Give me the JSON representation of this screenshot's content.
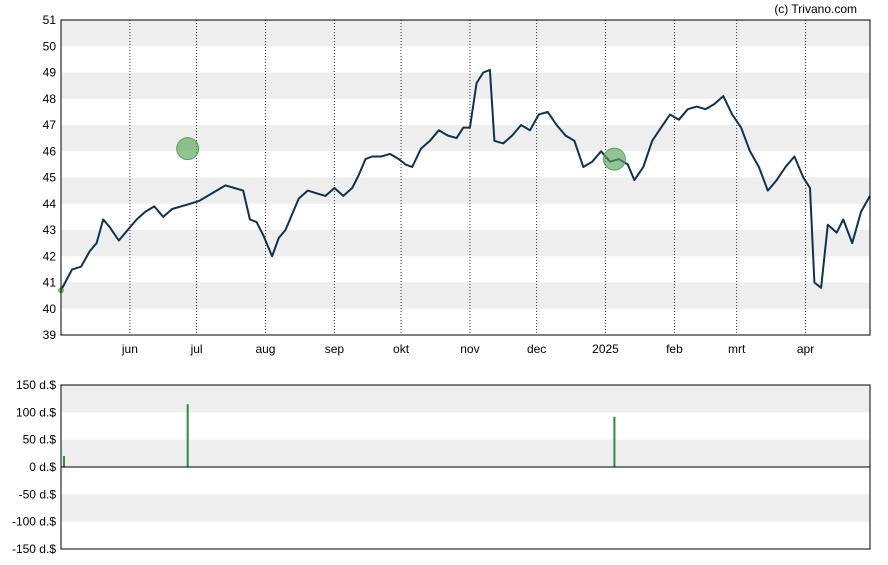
{
  "credit": "(c) Trivano.com",
  "colors": {
    "price_line": "#0d3350",
    "dividend_bar": "#2e8b3e",
    "dividend_marker": "#5aa55a",
    "band": "#eeeeee",
    "axis": "#000000"
  },
  "chart_data": [
    {
      "type": "line",
      "name": "price",
      "x_tick_labels": [
        "jun",
        "jul",
        "aug",
        "sep",
        "okt",
        "nov",
        "dec",
        "2025",
        "feb",
        "mrt",
        "apr"
      ],
      "y_tick_labels": [
        "39",
        "40",
        "41",
        "42",
        "43",
        "44",
        "45",
        "46",
        "47",
        "48",
        "49",
        "50",
        "51"
      ],
      "ylim": [
        39,
        51
      ],
      "grid": "alternating horizontal bands, dotted vertical month lines",
      "x_start": "2024-05-01",
      "x_end": "2025-04-30",
      "series": [
        {
          "values": [
            [
              "2024-05-01",
              40.7
            ],
            [
              "2024-05-06",
              41.5
            ],
            [
              "2024-05-10",
              41.6
            ],
            [
              "2024-05-14",
              42.2
            ],
            [
              "2024-05-17",
              42.5
            ],
            [
              "2024-05-20",
              43.4
            ],
            [
              "2024-05-23",
              43.1
            ],
            [
              "2024-05-27",
              42.6
            ],
            [
              "2024-05-31",
              43.0
            ],
            [
              "2024-06-04",
              43.4
            ],
            [
              "2024-06-08",
              43.7
            ],
            [
              "2024-06-12",
              43.9
            ],
            [
              "2024-06-16",
              43.5
            ],
            [
              "2024-06-20",
              43.8
            ],
            [
              "2024-06-24",
              43.9
            ],
            [
              "2024-06-28",
              44.0
            ],
            [
              "2024-07-02",
              44.1
            ],
            [
              "2024-07-06",
              44.3
            ],
            [
              "2024-07-10",
              44.5
            ],
            [
              "2024-07-14",
              44.7
            ],
            [
              "2024-07-18",
              44.6
            ],
            [
              "2024-07-22",
              44.5
            ],
            [
              "2024-07-25",
              43.4
            ],
            [
              "2024-07-28",
              43.3
            ],
            [
              "2024-07-31",
              42.8
            ],
            [
              "2024-08-04",
              42.0
            ],
            [
              "2024-08-07",
              42.7
            ],
            [
              "2024-08-10",
              43.0
            ],
            [
              "2024-08-13",
              43.6
            ],
            [
              "2024-08-16",
              44.2
            ],
            [
              "2024-08-20",
              44.5
            ],
            [
              "2024-08-24",
              44.4
            ],
            [
              "2024-08-28",
              44.3
            ],
            [
              "2024-09-01",
              44.6
            ],
            [
              "2024-09-05",
              44.3
            ],
            [
              "2024-09-09",
              44.6
            ],
            [
              "2024-09-12",
              45.1
            ],
            [
              "2024-09-15",
              45.7
            ],
            [
              "2024-09-18",
              45.8
            ],
            [
              "2024-09-22",
              45.8
            ],
            [
              "2024-09-26",
              45.9
            ],
            [
              "2024-09-30",
              45.7
            ],
            [
              "2024-10-03",
              45.5
            ],
            [
              "2024-10-06",
              45.4
            ],
            [
              "2024-10-10",
              46.1
            ],
            [
              "2024-10-14",
              46.4
            ],
            [
              "2024-10-18",
              46.8
            ],
            [
              "2024-10-22",
              46.6
            ],
            [
              "2024-10-26",
              46.5
            ],
            [
              "2024-10-29",
              46.9
            ],
            [
              "2024-11-01",
              46.9
            ],
            [
              "2024-11-04",
              48.6
            ],
            [
              "2024-11-07",
              49.0
            ],
            [
              "2024-11-10",
              49.1
            ],
            [
              "2024-11-12",
              46.4
            ],
            [
              "2024-11-16",
              46.3
            ],
            [
              "2024-11-20",
              46.6
            ],
            [
              "2024-11-24",
              47.0
            ],
            [
              "2024-11-28",
              46.8
            ],
            [
              "2024-12-02",
              47.4
            ],
            [
              "2024-12-06",
              47.5
            ],
            [
              "2024-12-10",
              47.0
            ],
            [
              "2024-12-14",
              46.6
            ],
            [
              "2024-12-18",
              46.4
            ],
            [
              "2024-12-22",
              45.4
            ],
            [
              "2024-12-26",
              45.6
            ],
            [
              "2024-12-30",
              46.0
            ],
            [
              "2025-01-03",
              45.6
            ],
            [
              "2025-01-07",
              45.7
            ],
            [
              "2025-01-11",
              45.5
            ],
            [
              "2025-01-14",
              44.9
            ],
            [
              "2025-01-18",
              45.4
            ],
            [
              "2025-01-22",
              46.4
            ],
            [
              "2025-01-26",
              46.9
            ],
            [
              "2025-01-30",
              47.4
            ],
            [
              "2025-02-03",
              47.2
            ],
            [
              "2025-02-07",
              47.6
            ],
            [
              "2025-02-11",
              47.7
            ],
            [
              "2025-02-15",
              47.6
            ],
            [
              "2025-02-19",
              47.8
            ],
            [
              "2025-02-23",
              48.1
            ],
            [
              "2025-02-27",
              47.4
            ],
            [
              "2025-03-03",
              46.9
            ],
            [
              "2025-03-07",
              46.0
            ],
            [
              "2025-03-11",
              45.4
            ],
            [
              "2025-03-15",
              44.5
            ],
            [
              "2025-03-19",
              44.9
            ],
            [
              "2025-03-23",
              45.4
            ],
            [
              "2025-03-27",
              45.8
            ],
            [
              "2025-03-31",
              45.0
            ],
            [
              "2025-04-03",
              44.6
            ],
            [
              "2025-04-05",
              41.0
            ],
            [
              "2025-04-08",
              40.8
            ],
            [
              "2025-04-11",
              43.2
            ],
            [
              "2025-04-15",
              42.9
            ],
            [
              "2025-04-18",
              43.4
            ],
            [
              "2025-04-22",
              42.5
            ],
            [
              "2025-04-26",
              43.7
            ],
            [
              "2025-04-30",
              44.3
            ]
          ]
        }
      ],
      "markers": [
        {
          "x": "2024-06-27",
          "y": 46.1
        },
        {
          "x": "2025-01-05",
          "y": 45.7
        }
      ]
    },
    {
      "type": "bar",
      "name": "dividends",
      "y_tick_labels": [
        "150 d.$",
        "100 d.$",
        "50 d.$",
        "0 d.$",
        "-50 d.$",
        "-100 d.$",
        "-150 d.$"
      ],
      "ylim": [
        -150,
        150
      ],
      "bars": [
        {
          "x": "2024-05-01",
          "y": 20
        },
        {
          "x": "2024-06-27",
          "y": 115
        },
        {
          "x": "2025-01-05",
          "y": 92
        }
      ]
    }
  ]
}
